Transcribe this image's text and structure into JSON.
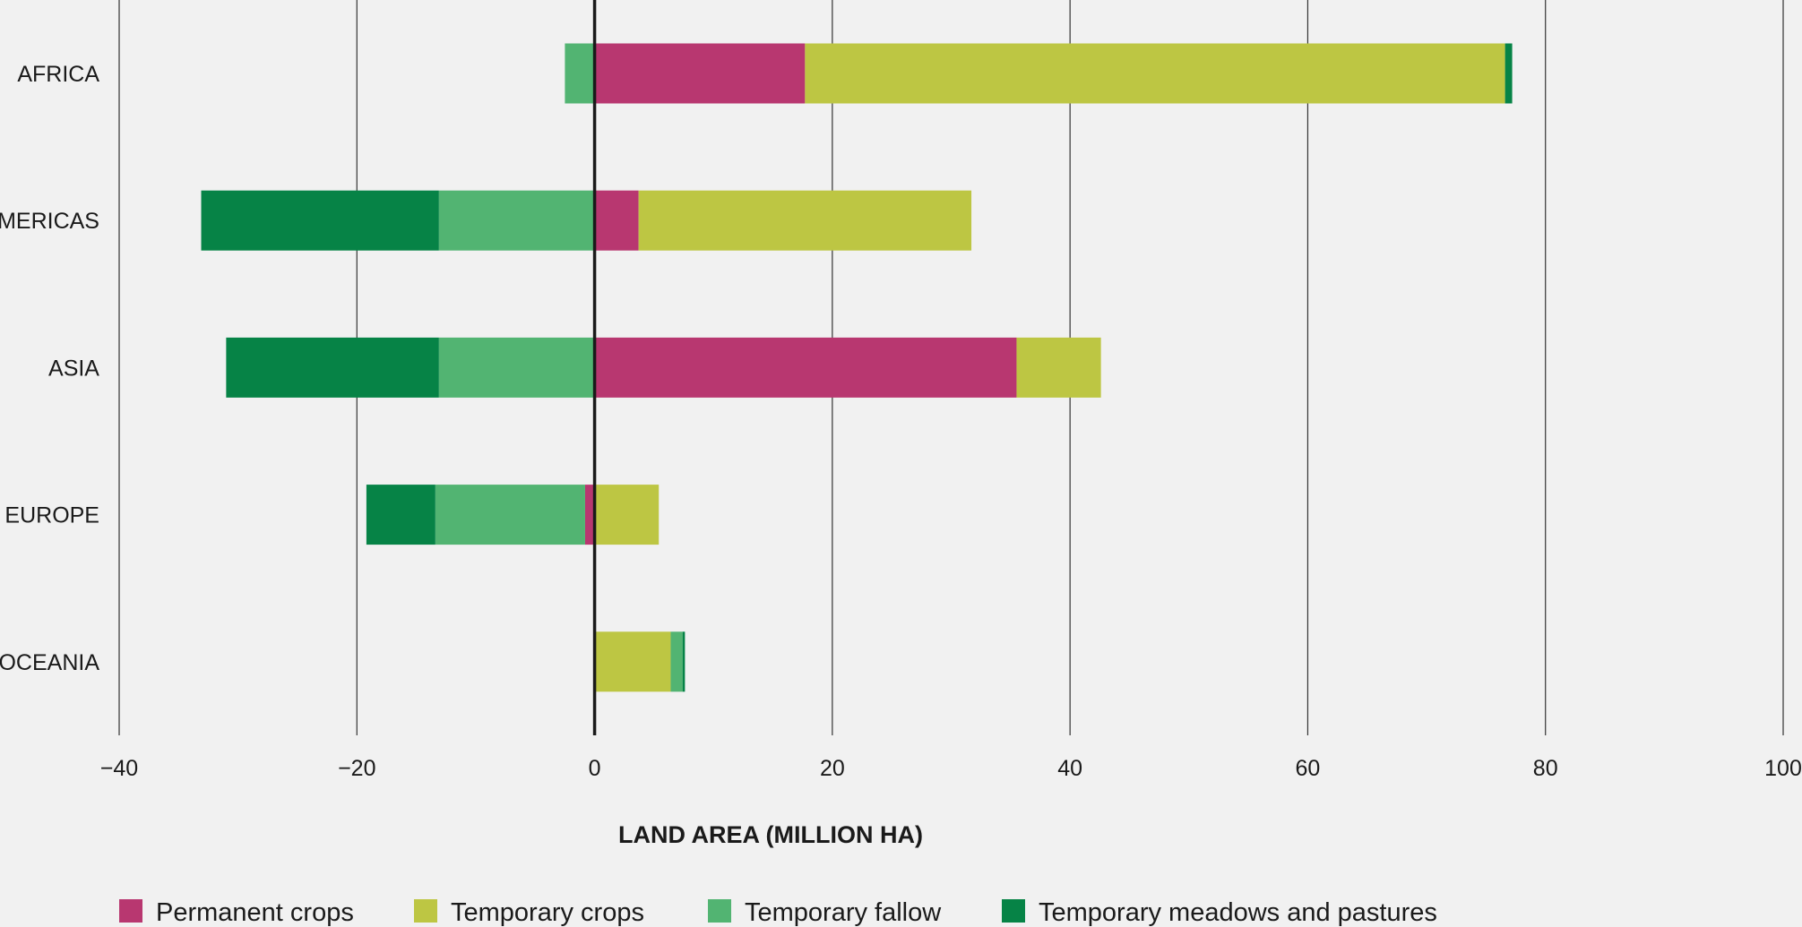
{
  "chart_data": {
    "type": "bar",
    "orientation": "horizontal",
    "stacked": true,
    "title": "",
    "xlabel": "LAND AREA (MILLION HA)",
    "ylabel": "",
    "xlim": [
      -40,
      100
    ],
    "xticks": [
      -40,
      -20,
      0,
      20,
      40,
      60,
      80,
      100
    ],
    "xtick_labels": [
      "−40",
      "−20",
      "0",
      "20",
      "40",
      "60",
      "80",
      "100"
    ],
    "grid": "vertical",
    "legend_position": "bottom",
    "categories": [
      "AFRICA",
      "AMERICAS",
      "ASIA",
      "EUROPE",
      "OCEANIA"
    ],
    "series": [
      {
        "name": "Permanent crops",
        "color": "#b83770",
        "values": [
          17.7,
          3.7,
          35.5,
          -0.8,
          0
        ]
      },
      {
        "name": "Temporary crops",
        "color": "#bdc643",
        "values": [
          58.9,
          28.0,
          7.1,
          5.4,
          6.4
        ]
      },
      {
        "name": "Temporary fallow",
        "color": "#52b472",
        "values": [
          -2.5,
          -13.1,
          -13.1,
          -12.6,
          1.0
        ]
      },
      {
        "name": "Temporary meadows and pastures",
        "color": "#068346",
        "values": [
          0.6,
          -20.0,
          -17.9,
          -5.8,
          0.2
        ]
      }
    ]
  }
}
